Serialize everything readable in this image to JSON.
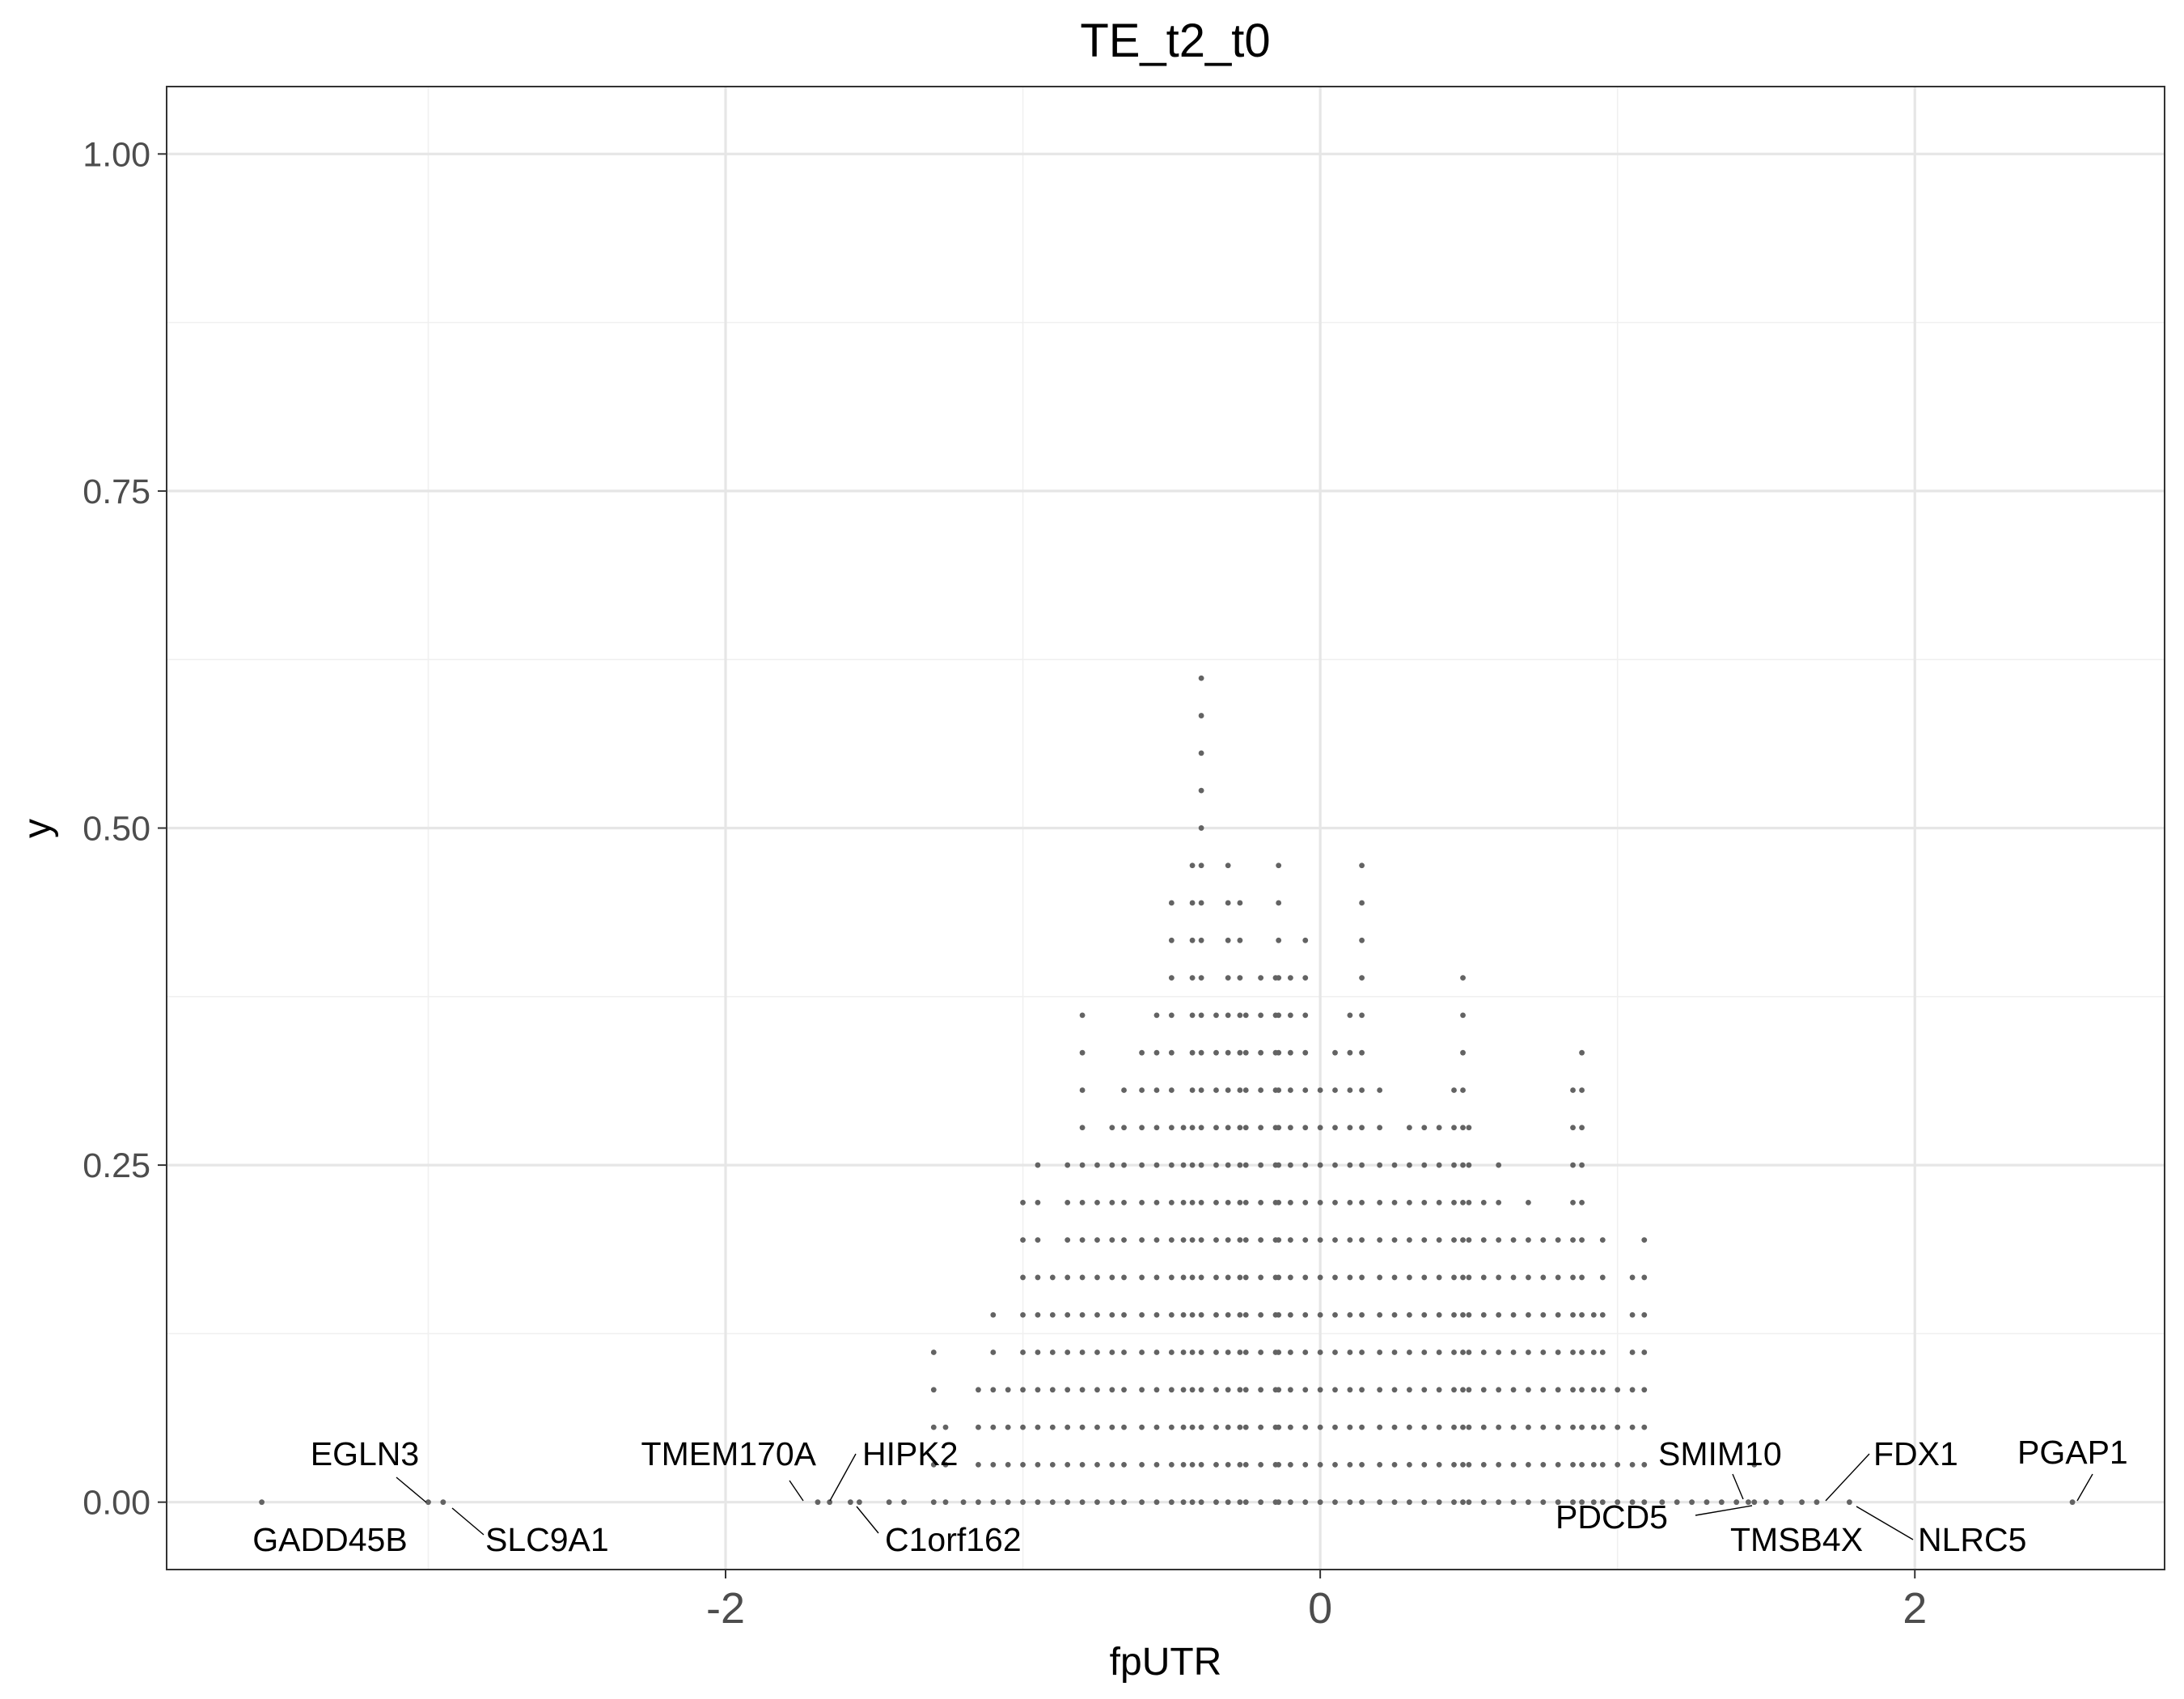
{
  "chart_data": {
    "type": "scatter",
    "title": "TE_t2_t0",
    "xlabel": "fpUTR",
    "ylabel": "y",
    "xlim": [
      -3.88,
      2.84
    ],
    "ylim": [
      -0.05,
      1.05
    ],
    "x_ticks": [
      -2,
      0,
      2
    ],
    "x_tick_labels": [
      "-2",
      "0",
      "2"
    ],
    "y_ticks": [
      0,
      0.25,
      0.5,
      0.75,
      1.0
    ],
    "y_tick_labels": [
      "0.00",
      "0.25",
      "0.50",
      "0.75",
      "1.00"
    ],
    "grid": true,
    "legend": "none",
    "point_color": "#636363",
    "columns": [
      [
        -3.56,
        1
      ],
      [
        -3.0,
        1
      ],
      [
        -2.95,
        1
      ],
      [
        -1.69,
        1
      ],
      [
        -1.65,
        1
      ],
      [
        -1.58,
        1
      ],
      [
        -1.55,
        1
      ],
      [
        -1.45,
        1
      ],
      [
        -1.4,
        1
      ],
      [
        -1.3,
        5
      ],
      [
        -1.26,
        3
      ],
      [
        -1.2,
        1
      ],
      [
        -1.15,
        4
      ],
      [
        -1.1,
        6
      ],
      [
        -1.05,
        4
      ],
      [
        -1.0,
        9
      ],
      [
        -0.95,
        10
      ],
      [
        -0.9,
        7
      ],
      [
        -0.85,
        10
      ],
      [
        -0.8,
        14
      ],
      [
        -0.75,
        10
      ],
      [
        -0.7,
        11
      ],
      [
        -0.66,
        12
      ],
      [
        -0.6,
        13
      ],
      [
        -0.55,
        14
      ],
      [
        -0.5,
        17
      ],
      [
        -0.46,
        11
      ],
      [
        -0.43,
        18
      ],
      [
        -0.4,
        23
      ],
      [
        -0.35,
        14
      ],
      [
        -0.31,
        18
      ],
      [
        -0.27,
        17
      ],
      [
        -0.25,
        14
      ],
      [
        -0.2,
        15
      ],
      [
        -0.15,
        15
      ],
      [
        -0.14,
        18
      ],
      [
        -0.1,
        15
      ],
      [
        -0.05,
        16
      ],
      [
        0.0,
        12
      ],
      [
        0.05,
        13
      ],
      [
        0.1,
        14
      ],
      [
        0.14,
        18
      ],
      [
        0.2,
        12
      ],
      [
        0.25,
        10
      ],
      [
        0.3,
        11
      ],
      [
        0.35,
        11
      ],
      [
        0.4,
        11
      ],
      [
        0.45,
        12
      ],
      [
        0.48,
        15
      ],
      [
        0.5,
        11
      ],
      [
        0.55,
        9
      ],
      [
        0.6,
        10
      ],
      [
        0.65,
        8
      ],
      [
        0.7,
        9
      ],
      [
        0.75,
        8
      ],
      [
        0.8,
        8
      ],
      [
        0.85,
        12
      ],
      [
        0.88,
        13
      ],
      [
        0.92,
        6
      ],
      [
        0.95,
        8
      ],
      [
        1.0,
        4
      ],
      [
        1.05,
        7
      ],
      [
        1.09,
        8
      ],
      [
        1.15,
        1
      ],
      [
        1.2,
        1
      ],
      [
        1.25,
        1
      ],
      [
        1.3,
        1
      ],
      [
        1.35,
        1
      ],
      [
        1.4,
        1
      ],
      [
        1.44,
        1
      ],
      [
        1.46,
        2
      ],
      [
        1.5,
        1
      ],
      [
        1.55,
        1
      ],
      [
        1.62,
        1
      ],
      [
        1.67,
        1
      ],
      [
        1.78,
        1
      ],
      [
        2.53,
        1
      ]
    ],
    "bin_height": 0.02778,
    "annotations": [
      {
        "label": "GADD45B"
      },
      {
        "label": "EGLN3"
      },
      {
        "label": "SLC9A1"
      },
      {
        "label": "TMEM170A"
      },
      {
        "label": "HIPK2"
      },
      {
        "label": "C1orf162"
      },
      {
        "label": "SMIM10"
      },
      {
        "label": "PDCD5"
      },
      {
        "label": "FDX1"
      },
      {
        "label": "TMSB4X"
      },
      {
        "label": "NLRC5"
      },
      {
        "label": "PGAP1"
      }
    ]
  }
}
